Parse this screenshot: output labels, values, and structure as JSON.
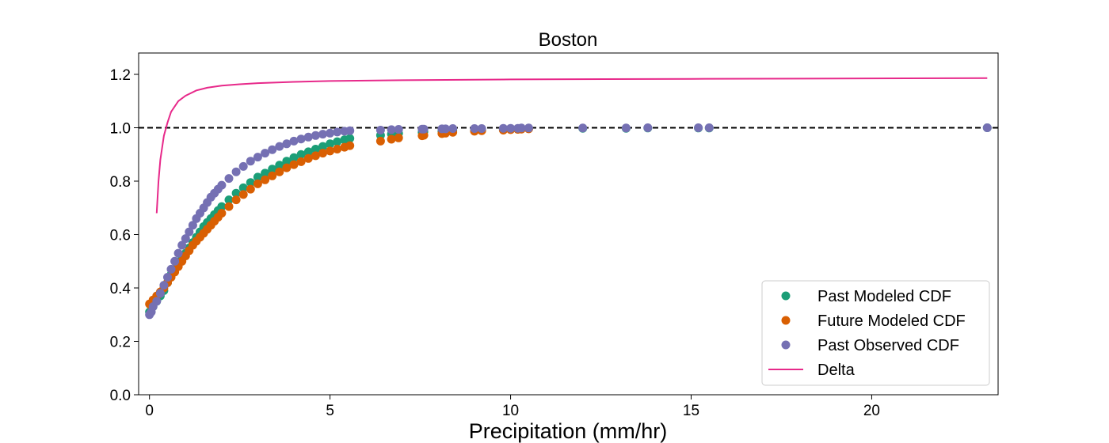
{
  "chart_data": {
    "type": "scatter",
    "title": "Boston",
    "xlabel": "Precipitation (mm/hr)",
    "ylabel": "",
    "xlim": [
      -0.3,
      23.5
    ],
    "ylim": [
      0.0,
      1.28
    ],
    "x_ticks": [
      0,
      5,
      10,
      15,
      20
    ],
    "x_tick_labels": [
      "0",
      "5",
      "10",
      "15",
      "20"
    ],
    "y_ticks": [
      0.0,
      0.2,
      0.4,
      0.6,
      0.8,
      1.0,
      1.2
    ],
    "y_tick_labels": [
      "0.0",
      "0.2",
      "0.4",
      "0.6",
      "0.8",
      "1.0",
      "1.2"
    ],
    "grid": false,
    "legend_position": "lower-right",
    "reference_line": {
      "y": 1.0,
      "style": "dashed",
      "color": "#000000"
    },
    "series": [
      {
        "name": "Past Modeled CDF",
        "kind": "scatter",
        "color": "#1b9e77",
        "points": [
          [
            0,
            0.31
          ],
          [
            0.1,
            0.33
          ],
          [
            0.2,
            0.35
          ],
          [
            0.3,
            0.37
          ],
          [
            0.4,
            0.39
          ],
          [
            0.5,
            0.42
          ],
          [
            0.6,
            0.45
          ],
          [
            0.7,
            0.47
          ],
          [
            0.8,
            0.49
          ],
          [
            0.9,
            0.51
          ],
          [
            1.0,
            0.53
          ],
          [
            1.1,
            0.55
          ],
          [
            1.2,
            0.57
          ],
          [
            1.3,
            0.59
          ],
          [
            1.4,
            0.61
          ],
          [
            1.5,
            0.63
          ],
          [
            1.6,
            0.645
          ],
          [
            1.7,
            0.66
          ],
          [
            1.8,
            0.675
          ],
          [
            1.9,
            0.69
          ],
          [
            2.0,
            0.705
          ],
          [
            2.2,
            0.73
          ],
          [
            2.4,
            0.755
          ],
          [
            2.6,
            0.775
          ],
          [
            2.8,
            0.795
          ],
          [
            3.0,
            0.815
          ],
          [
            3.2,
            0.83
          ],
          [
            3.4,
            0.845
          ],
          [
            3.6,
            0.86
          ],
          [
            3.8,
            0.875
          ],
          [
            4.0,
            0.888
          ],
          [
            4.2,
            0.9
          ],
          [
            4.4,
            0.91
          ],
          [
            4.6,
            0.92
          ],
          [
            4.8,
            0.93
          ],
          [
            5.0,
            0.94
          ],
          [
            5.2,
            0.948
          ],
          [
            5.4,
            0.955
          ],
          [
            5.55,
            0.96
          ],
          [
            6.4,
            0.972
          ],
          [
            6.7,
            0.976
          ],
          [
            6.9,
            0.979
          ],
          [
            7.55,
            0.983
          ],
          [
            7.6,
            0.985
          ],
          [
            8.1,
            0.986
          ],
          [
            8.2,
            0.988
          ],
          [
            8.4,
            0.989
          ],
          [
            9.0,
            0.991
          ],
          [
            9.2,
            0.992
          ],
          [
            9.8,
            0.993
          ],
          [
            10.0,
            0.994
          ],
          [
            10.2,
            0.995
          ],
          [
            10.3,
            0.996
          ],
          [
            10.5,
            0.997
          ],
          [
            12.0,
            0.998
          ],
          [
            13.2,
            0.998
          ],
          [
            13.8,
            0.999
          ],
          [
            15.2,
            0.999
          ],
          [
            15.5,
            0.999
          ],
          [
            23.2,
            1.0
          ]
        ]
      },
      {
        "name": "Future Modeled CDF",
        "kind": "scatter",
        "color": "#d95f02",
        "points": [
          [
            0,
            0.34
          ],
          [
            0.1,
            0.355
          ],
          [
            0.2,
            0.37
          ],
          [
            0.3,
            0.385
          ],
          [
            0.4,
            0.4
          ],
          [
            0.5,
            0.42
          ],
          [
            0.6,
            0.44
          ],
          [
            0.7,
            0.46
          ],
          [
            0.8,
            0.48
          ],
          [
            0.9,
            0.5
          ],
          [
            1.0,
            0.52
          ],
          [
            1.1,
            0.54
          ],
          [
            1.2,
            0.56
          ],
          [
            1.3,
            0.575
          ],
          [
            1.4,
            0.59
          ],
          [
            1.5,
            0.605
          ],
          [
            1.6,
            0.62
          ],
          [
            1.7,
            0.635
          ],
          [
            1.8,
            0.65
          ],
          [
            1.9,
            0.665
          ],
          [
            2.0,
            0.68
          ],
          [
            2.2,
            0.705
          ],
          [
            2.4,
            0.73
          ],
          [
            2.6,
            0.75
          ],
          [
            2.8,
            0.77
          ],
          [
            3.0,
            0.79
          ],
          [
            3.2,
            0.805
          ],
          [
            3.4,
            0.82
          ],
          [
            3.6,
            0.835
          ],
          [
            3.8,
            0.85
          ],
          [
            4.0,
            0.862
          ],
          [
            4.2,
            0.873
          ],
          [
            4.4,
            0.885
          ],
          [
            4.6,
            0.895
          ],
          [
            4.8,
            0.905
          ],
          [
            5.0,
            0.913
          ],
          [
            5.2,
            0.92
          ],
          [
            5.4,
            0.927
          ],
          [
            5.55,
            0.933
          ],
          [
            6.4,
            0.95
          ],
          [
            6.7,
            0.957
          ],
          [
            6.9,
            0.962
          ],
          [
            7.55,
            0.97
          ],
          [
            7.6,
            0.972
          ],
          [
            8.1,
            0.978
          ],
          [
            8.2,
            0.98
          ],
          [
            8.4,
            0.983
          ],
          [
            9.0,
            0.987
          ],
          [
            9.2,
            0.989
          ],
          [
            9.8,
            0.991
          ],
          [
            10.0,
            0.993
          ],
          [
            10.2,
            0.994
          ],
          [
            10.3,
            0.995
          ],
          [
            10.5,
            0.996
          ]
        ]
      },
      {
        "name": "Past Observed CDF",
        "kind": "scatter",
        "color": "#7570b3",
        "points": [
          [
            0,
            0.3
          ],
          [
            0.05,
            0.31
          ],
          [
            0.1,
            0.33
          ],
          [
            0.2,
            0.35
          ],
          [
            0.3,
            0.38
          ],
          [
            0.4,
            0.41
          ],
          [
            0.5,
            0.44
          ],
          [
            0.6,
            0.47
          ],
          [
            0.7,
            0.5
          ],
          [
            0.8,
            0.53
          ],
          [
            0.9,
            0.56
          ],
          [
            1.0,
            0.585
          ],
          [
            1.1,
            0.61
          ],
          [
            1.2,
            0.635
          ],
          [
            1.3,
            0.66
          ],
          [
            1.4,
            0.68
          ],
          [
            1.5,
            0.7
          ],
          [
            1.6,
            0.72
          ],
          [
            1.7,
            0.74
          ],
          [
            1.8,
            0.755
          ],
          [
            1.9,
            0.77
          ],
          [
            2.0,
            0.785
          ],
          [
            2.2,
            0.81
          ],
          [
            2.4,
            0.835
          ],
          [
            2.6,
            0.855
          ],
          [
            2.8,
            0.875
          ],
          [
            3.0,
            0.89
          ],
          [
            3.2,
            0.905
          ],
          [
            3.4,
            0.918
          ],
          [
            3.6,
            0.93
          ],
          [
            3.8,
            0.94
          ],
          [
            4.0,
            0.95
          ],
          [
            4.2,
            0.958
          ],
          [
            4.4,
            0.965
          ],
          [
            4.6,
            0.971
          ],
          [
            4.8,
            0.976
          ],
          [
            5.0,
            0.98
          ],
          [
            5.2,
            0.984
          ],
          [
            5.4,
            0.987
          ],
          [
            5.55,
            0.989
          ],
          [
            6.4,
            0.991
          ],
          [
            6.7,
            0.993
          ],
          [
            6.9,
            0.994
          ],
          [
            7.55,
            0.995
          ],
          [
            7.6,
            0.995
          ],
          [
            8.1,
            0.996
          ],
          [
            8.2,
            0.996
          ],
          [
            8.4,
            0.997
          ],
          [
            9.0,
            0.997
          ],
          [
            9.2,
            0.997
          ],
          [
            9.8,
            0.998
          ],
          [
            10.0,
            0.998
          ],
          [
            10.2,
            0.998
          ],
          [
            10.3,
            0.999
          ],
          [
            10.5,
            0.999
          ],
          [
            12.0,
            0.999
          ],
          [
            13.2,
            0.999
          ],
          [
            13.8,
            1.0
          ],
          [
            15.2,
            1.0
          ],
          [
            15.5,
            1.0
          ],
          [
            23.2,
            1.0
          ]
        ]
      },
      {
        "name": "Delta",
        "kind": "line",
        "color": "#e7298a",
        "points": [
          [
            0.2,
            0.68
          ],
          [
            0.25,
            0.8
          ],
          [
            0.3,
            0.88
          ],
          [
            0.4,
            0.97
          ],
          [
            0.5,
            1.02
          ],
          [
            0.6,
            1.06
          ],
          [
            0.8,
            1.1
          ],
          [
            1.0,
            1.12
          ],
          [
            1.3,
            1.14
          ],
          [
            1.6,
            1.15
          ],
          [
            2.0,
            1.158
          ],
          [
            2.5,
            1.163
          ],
          [
            3.0,
            1.167
          ],
          [
            4.0,
            1.172
          ],
          [
            5.0,
            1.175
          ],
          [
            7.0,
            1.178
          ],
          [
            10.0,
            1.181
          ],
          [
            15.0,
            1.183
          ],
          [
            20.0,
            1.185
          ],
          [
            23.2,
            1.186
          ]
        ]
      }
    ]
  }
}
